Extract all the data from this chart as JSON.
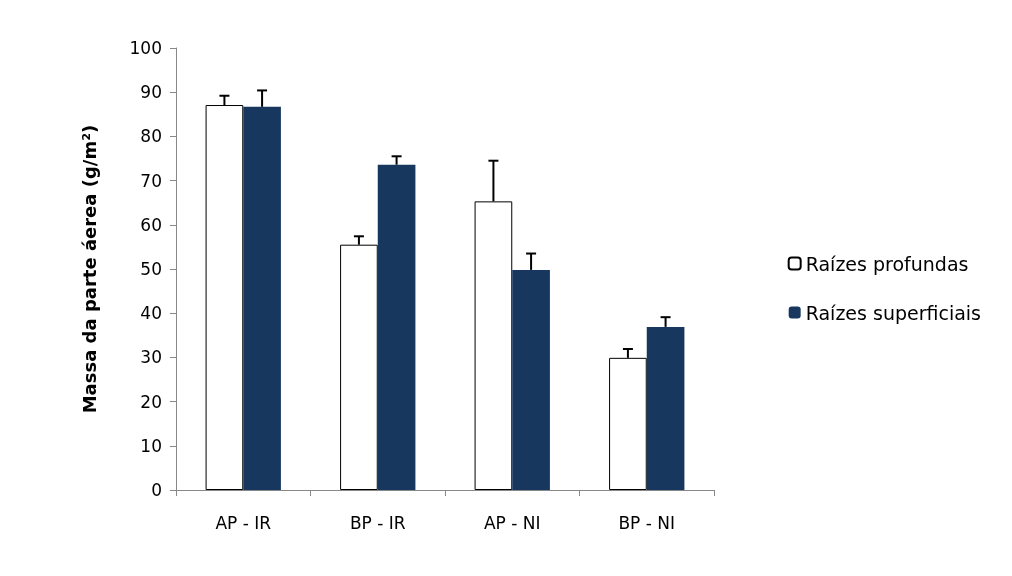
{
  "chart_data": {
    "type": "bar",
    "ylabel": "Massa da parte áerea (g/m²)",
    "categories": [
      "AP - IR",
      "BP - IR",
      "AP - NI",
      "BP - NI"
    ],
    "series": [
      {
        "name": "Raízes profundas",
        "color": "#ffffff",
        "values": [
          87.1,
          55.5,
          65.3,
          29.9
        ],
        "errors": [
          [
            87.1,
            89.2
          ],
          [
            55.5,
            57.4
          ],
          [
            65.3,
            74.5
          ],
          [
            29.9,
            31.9
          ]
        ]
      },
      {
        "name": "Raízes superficiais",
        "color": "#17375e",
        "values": [
          86.7,
          73.6,
          49.8,
          36.9
        ],
        "errors": [
          [
            86.7,
            90.4
          ],
          [
            73.6,
            75.5
          ],
          [
            49.8,
            53.5
          ],
          [
            36.9,
            39.1
          ]
        ]
      }
    ],
    "ylim": [
      0,
      100
    ],
    "yticks": [
      0,
      10,
      20,
      30,
      40,
      50,
      60,
      70,
      80,
      90,
      100
    ],
    "grid": false,
    "legend": "right"
  }
}
